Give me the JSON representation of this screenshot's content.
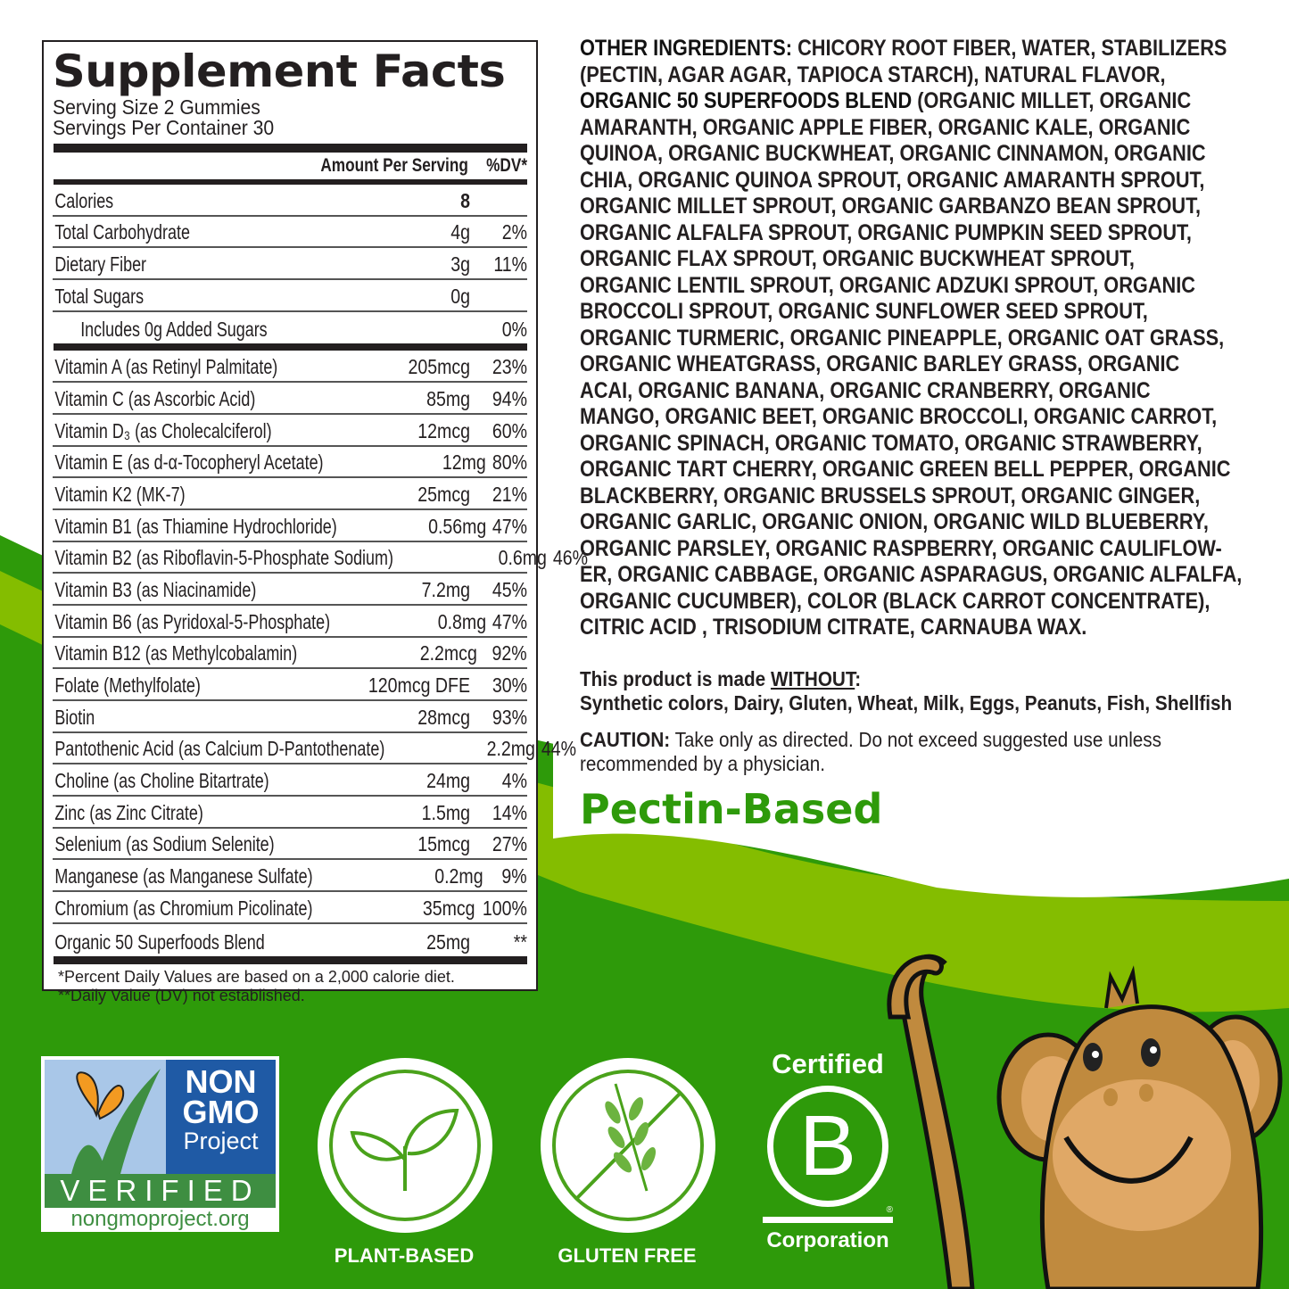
{
  "colors": {
    "dark_green": "#2e9a0a",
    "light_green": "#84bd00",
    "text": "#231f20",
    "monkey_brown": "#c08a3e"
  },
  "facts": {
    "title": "Supplement Facts",
    "serving_size": "Serving Size 2 Gummies",
    "servings_per_container": "Servings Per Container 30",
    "amount_header": "Amount Per Serving",
    "dv_header": "%DV*",
    "rows_top": [
      {
        "name": "Calories",
        "amount": "8",
        "dv": ""
      },
      {
        "name": "Total Carbohydrate",
        "amount": "4g",
        "dv": "2%"
      },
      {
        "name": "Dietary Fiber",
        "amount": "3g",
        "dv": "11%"
      },
      {
        "name": "Total Sugars",
        "amount": "0g",
        "dv": ""
      },
      {
        "name": "Includes 0g Added Sugars",
        "amount": "",
        "dv": "0%",
        "indent": true
      }
    ],
    "rows": [
      {
        "name": "Vitamin A (as Retinyl Palmitate)",
        "amount": "205mcg",
        "dv": "23%"
      },
      {
        "name": "Vitamin C (as Ascorbic Acid)",
        "amount": "85mg",
        "dv": "94%"
      },
      {
        "name": "Vitamin D₃ (as Cholecalciferol)",
        "amount": "12mcg",
        "dv": "60%"
      },
      {
        "name": "Vitamin E (as d-α-Tocopheryl Acetate)",
        "amount": "12mg",
        "dv": "80%"
      },
      {
        "name": "Vitamin K2 (MK-7)",
        "amount": "25mcg",
        "dv": "21%"
      },
      {
        "name": "Vitamin B1 (as Thiamine Hydrochloride)",
        "amount": "0.56mg",
        "dv": "47%"
      },
      {
        "name": "Vitamin B2 (as Riboflavin-5-Phosphate Sodium)",
        "amount": "0.6mg",
        "dv": "46%"
      },
      {
        "name": "Vitamin B3 (as Niacinamide)",
        "amount": "7.2mg",
        "dv": "45%"
      },
      {
        "name": "Vitamin B6 (as Pyridoxal-5-Phosphate)",
        "amount": "0.8mg",
        "dv": "47%"
      },
      {
        "name": "Vitamin B12 (as Methylcobalamin)",
        "amount": "2.2mcg",
        "dv": "92%"
      },
      {
        "name": "Folate (Methylfolate)",
        "amount": "120mcg DFE",
        "dv": "30%"
      },
      {
        "name": "Biotin",
        "amount": "28mcg",
        "dv": "93%"
      },
      {
        "name": "Pantothenic Acid (as Calcium D-Pantothenate)",
        "amount": "2.2mg",
        "dv": "44%"
      },
      {
        "name": "Choline (as Choline Bitartrate)",
        "amount": "24mg",
        "dv": "4%"
      },
      {
        "name": "Zinc (as Zinc Citrate)",
        "amount": "1.5mg",
        "dv": "14%"
      },
      {
        "name": "Selenium (as Sodium Selenite)",
        "amount": "15mcg",
        "dv": "27%"
      },
      {
        "name": "Manganese (as Manganese Sulfate)",
        "amount": "0.2mg",
        "dv": "9%"
      },
      {
        "name": "Chromium (as Chromium Picolinate)",
        "amount": "35mcg",
        "dv": "100%"
      },
      {
        "name": "Organic 50 Superfoods Blend",
        "amount": "25mg",
        "dv": "**"
      }
    ],
    "note1": "*Percent Daily Values are based on a 2,000 calorie diet.",
    "note2": "**Daily Value (DV) not established."
  },
  "ingredients": {
    "lines": [
      {
        "bold": "OTHER INGREDIENTS:",
        "text": " CHICORY ROOT FIBER, WATER, STABILIZERS"
      },
      {
        "bold": "",
        "text": "(PECTIN, AGAR AGAR, TAPIOCA STARCH), NATURAL FLAVOR,"
      },
      {
        "bold": "ORGANIC 50 SUPERFOODS BLEND",
        "text": " (ORGANIC MILLET, ORGANIC"
      },
      {
        "bold": "",
        "text": "AMARANTH, ORGANIC APPLE FIBER, ORGANIC KALE, ORGANIC"
      },
      {
        "bold": "",
        "text": "QUINOA, ORGANIC BUCKWHEAT, ORGANIC CINNAMON, ORGANIC"
      },
      {
        "bold": "",
        "text": "CHIA, ORGANIC QUINOA SPROUT, ORGANIC AMARANTH SPROUT,"
      },
      {
        "bold": "",
        "text": "ORGANIC MILLET SPROUT, ORGANIC GARBANZO BEAN SPROUT,"
      },
      {
        "bold": "",
        "text": "ORGANIC ALFALFA SPROUT, ORGANIC PUMPKIN SEED SPROUT,"
      },
      {
        "bold": "",
        "text": "ORGANIC FLAX SPROUT, ORGANIC BUCKWHEAT SPROUT,"
      },
      {
        "bold": "",
        "text": "ORGANIC LENTIL SPROUT, ORGANIC ADZUKI SPROUT, ORGANIC"
      },
      {
        "bold": "",
        "text": "BROCCOLI SPROUT, ORGANIC SUNFLOWER SEED SPROUT,"
      },
      {
        "bold": "",
        "text": "ORGANIC TURMERIC, ORGANIC PINEAPPLE, ORGANIC OAT GRASS,"
      },
      {
        "bold": "",
        "text": "ORGANIC WHEATGRASS, ORGANIC BARLEY GRASS, ORGANIC"
      },
      {
        "bold": "",
        "text": "ACAI, ORGANIC BANANA, ORGANIC CRANBERRY, ORGANIC"
      },
      {
        "bold": "",
        "text": "MANGO, ORGANIC BEET, ORGANIC BROCCOLI, ORGANIC CARROT,"
      },
      {
        "bold": "",
        "text": "ORGANIC SPINACH, ORGANIC TOMATO, ORGANIC STRAWBERRY,"
      },
      {
        "bold": "",
        "text": "ORGANIC TART CHERRY, ORGANIC GREEN BELL PEPPER, ORGANIC"
      },
      {
        "bold": "",
        "text": "BLACKBERRY, ORGANIC BRUSSELS SPROUT, ORGANIC GINGER,"
      },
      {
        "bold": "",
        "text": "ORGANIC GARLIC, ORGANIC ONION, ORGANIC WILD BLUEBERRY,"
      },
      {
        "bold": "",
        "text": "ORGANIC PARSLEY, ORGANIC RASPBERRY, ORGANIC CAULIFLOW-"
      },
      {
        "bold": "",
        "text": "ER, ORGANIC CABBAGE, ORGANIC ASPARAGUS, ORGANIC ALFALFA,"
      },
      {
        "bold": "",
        "text": "ORGANIC CUCUMBER), COLOR (BLACK CARROT CONCENTRATE),"
      },
      {
        "bold": "",
        "text": "CITRIC ACID , TRISODIUM CITRATE, CARNAUBA WAX."
      }
    ]
  },
  "without": {
    "prefix": "This product is made ",
    "word": "WITHOUT",
    "suffix": ":",
    "list": "Synthetic colors, Dairy, Gluten, Wheat, Milk, Eggs, Peanuts, Fish, Shellfish"
  },
  "caution": {
    "label": "CAUTION:",
    "line1": " Take only as directed. Do not exceed suggested use unless",
    "line2": "recommended by a physician."
  },
  "pectin": "Pectin-Based",
  "badges": {
    "nongmo": {
      "line1": "NON",
      "line2": "GMO",
      "line3": "Project",
      "verified": "VERIFIED",
      "url": "nongmoproject.org"
    },
    "plant_based": "PLANT-BASED",
    "gluten_free": "GLUTEN FREE",
    "bcorp": {
      "top": "Certified",
      "letter": "B",
      "bottom": "Corporation",
      "reg": "®"
    }
  }
}
